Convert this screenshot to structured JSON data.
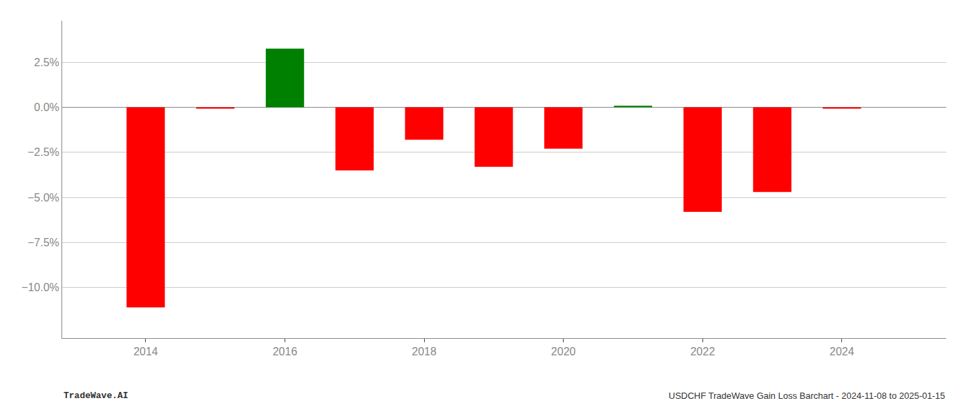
{
  "chart_data": {
    "type": "bar",
    "x": [
      2014,
      2015,
      2016,
      2017,
      2018,
      2019,
      2020,
      2021,
      2022,
      2023,
      2024
    ],
    "values": [
      -11.1,
      -0.08,
      3.25,
      -3.5,
      -1.8,
      -3.3,
      -2.3,
      0.08,
      -5.8,
      -4.7,
      -0.08
    ],
    "colors": [
      "#FF0000",
      "#FF0000",
      "#008000",
      "#FF0000",
      "#FF0000",
      "#FF0000",
      "#FF0000",
      "#008000",
      "#FF0000",
      "#FF0000",
      "#FF0000"
    ],
    "xlim": [
      2012.8,
      2025.5
    ],
    "xticks": [
      2014,
      2016,
      2018,
      2020,
      2022,
      2024
    ],
    "ylim": [
      -12.8,
      4.8
    ],
    "yticks": [
      {
        "value": -10.0,
        "label": "−10.0%"
      },
      {
        "value": -7.5,
        "label": "−7.5%"
      },
      {
        "value": -5.0,
        "label": "−5.0%"
      },
      {
        "value": -2.5,
        "label": "−2.5%"
      },
      {
        "value": 0.0,
        "label": "0.0%"
      },
      {
        "value": 2.5,
        "label": "2.5%"
      }
    ],
    "grid": true,
    "annotations": [
      "TradeWave.AI",
      "USDCHF TradeWave Gain Loss Barchart - 2024-11-08 to 2025-01-15"
    ]
  }
}
